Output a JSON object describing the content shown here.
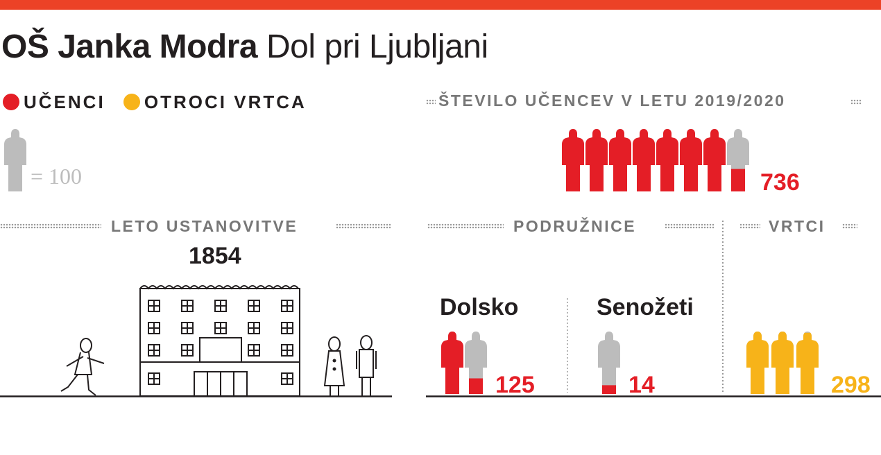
{
  "header": {
    "title_bold": "OŠ Janka Modra",
    "title_light": "Dol pri Ljubljani"
  },
  "legend": {
    "items": [
      {
        "label": "UČENCI",
        "color": "#e41e26"
      },
      {
        "label": "OTROCI VRTCA",
        "color": "#f7b319"
      }
    ]
  },
  "scale": {
    "label": "= 100"
  },
  "sections": {
    "students_total": {
      "label": "ŠTEVILO UČENCEV V LETU 2019/2020",
      "value": "736",
      "fill": 7.36
    },
    "founded": {
      "label": "LETO USTANOVITVE",
      "value": "1854"
    },
    "branches": {
      "label": "PODRUŽNICE",
      "items": [
        {
          "name": "Dolsko",
          "value": "125",
          "fill": 1.25
        },
        {
          "name": "Senožeti",
          "value": "14",
          "fill": 0.14
        }
      ]
    },
    "kindergartens": {
      "label": "VRTCI",
      "value": "298",
      "fill": 2.98
    }
  },
  "colors": {
    "accent": "#ec4226",
    "students": "#e41e26",
    "kindergarten": "#f7b319",
    "empty": "#bcbcbc"
  }
}
